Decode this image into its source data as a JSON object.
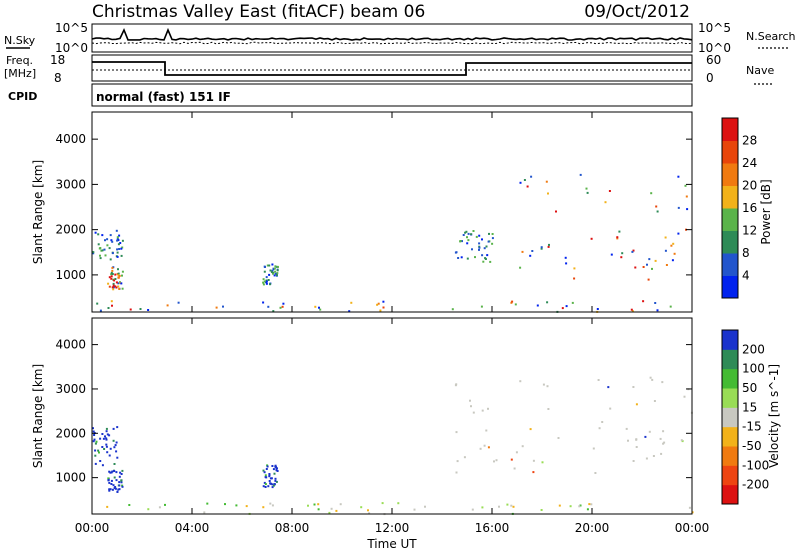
{
  "header": {
    "title": "Christmas Valley East (fitACF)",
    "beam": "beam 06",
    "date": "09/Oct/2012"
  },
  "top_panels": {
    "nsky_label": "N.Sky",
    "nsky_ticks": [
      "10^5",
      "10^0"
    ],
    "nsearch_label": "N.Search",
    "nsearch_ticks": [
      "10^5",
      "10^0"
    ],
    "freq_label": "Freq.",
    "freq_unit": "[MHz]",
    "freq_ticks": [
      "18",
      "8"
    ],
    "nave_label": "Nave",
    "nave_ticks": [
      "60",
      "0"
    ],
    "cpid_label": "CPID",
    "cpid_value": "normal (fast) 151 IF"
  },
  "chart_data": [
    {
      "type": "heatmap",
      "name": "power",
      "ylabel": "Slant Range [km]",
      "xlabel": "",
      "ylim": [
        180,
        4600
      ],
      "yticks": [
        "1000",
        "2000",
        "3000",
        "4000"
      ],
      "colorbar_label": "Power [dB]",
      "colorbar_ticks": [
        "4",
        "8",
        "12",
        "16",
        "20",
        "24",
        "28"
      ],
      "colorbar_colors": [
        "#0022ee",
        "#2255cc",
        "#2e8b57",
        "#5ab34a",
        "#f2b21a",
        "#f07a10",
        "#e8450a",
        "#dd1111"
      ],
      "features": [
        {
          "t_start": 0.0,
          "t_end": 1.2,
          "r_start": 1300,
          "r_end": 2000
        },
        {
          "t_start": 0.6,
          "t_end": 1.2,
          "r_start": 700,
          "r_end": 1200
        },
        {
          "t_start": 6.8,
          "t_end": 7.4,
          "r_start": 800,
          "r_end": 1300
        },
        {
          "t_start": 0.0,
          "t_end": 24.0,
          "r_start": 200,
          "r_end": 450
        },
        {
          "t_start": 14.5,
          "t_end": 16.0,
          "r_start": 1300,
          "r_end": 2000
        },
        {
          "t_start": 17.0,
          "t_end": 24.0,
          "r_start": 1100,
          "r_end": 3300
        }
      ]
    },
    {
      "type": "heatmap",
      "name": "velocity",
      "ylabel": "Slant Range [km]",
      "xlabel": "Time UT",
      "ylim": [
        180,
        4600
      ],
      "yticks": [
        "1000",
        "2000",
        "3000",
        "4000"
      ],
      "xticks": [
        "00:00",
        "04:00",
        "08:00",
        "12:00",
        "16:00",
        "20:00",
        "00:00"
      ],
      "colorbar_label": "Velocity [m s^-1]",
      "colorbar_ticks": [
        "200",
        "100",
        "50",
        "15",
        "-15",
        "-50",
        "-100",
        "-200"
      ],
      "colorbar_colors": [
        "#1a33cc",
        "#2e8b57",
        "#44bb33",
        "#99dd55",
        "#c8c8c0",
        "#f2b21a",
        "#f07a10",
        "#ee4411",
        "#dd1111"
      ],
      "features": [
        {
          "t_start": 0.0,
          "t_end": 1.0,
          "r_start": 1300,
          "r_end": 2200
        },
        {
          "t_start": 0.6,
          "t_end": 1.2,
          "r_start": 700,
          "r_end": 1200
        },
        {
          "t_start": 6.8,
          "t_end": 7.4,
          "r_start": 800,
          "r_end": 1300
        },
        {
          "t_start": 0.0,
          "t_end": 24.0,
          "r_start": 200,
          "r_end": 450
        },
        {
          "t_start": 14.5,
          "t_end": 24.0,
          "r_start": 1100,
          "r_end": 3300
        }
      ]
    }
  ]
}
